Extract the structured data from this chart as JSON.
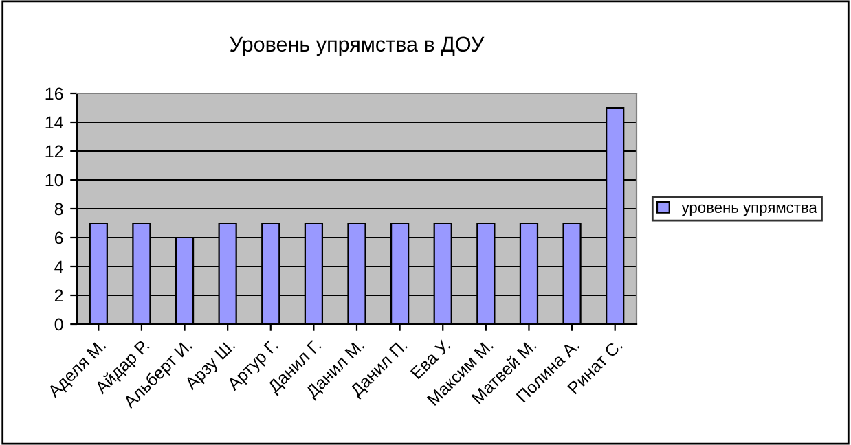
{
  "chart_data": {
    "type": "bar",
    "title": "Уровень упрямства в ДОУ",
    "categories": [
      "Аделя М.",
      "Айдар Р.",
      "Альберт И.",
      "Арзу Ш.",
      "Артур Г.",
      "Данил Г.",
      "Данил М.",
      "Данил П.",
      "Ева У.",
      "Максим М.",
      "Матвей М.",
      "Полина А.",
      "Ринат С."
    ],
    "series": [
      {
        "name": "уровень упрямства",
        "color": "#9999ff",
        "values": [
          7,
          7,
          6,
          7,
          7,
          7,
          7,
          7,
          7,
          7,
          7,
          7,
          15
        ]
      }
    ],
    "ylim": [
      0,
      16
    ],
    "yticks": [
      0,
      2,
      4,
      6,
      8,
      10,
      12,
      14,
      16
    ],
    "grid": "y",
    "legend": "right"
  }
}
